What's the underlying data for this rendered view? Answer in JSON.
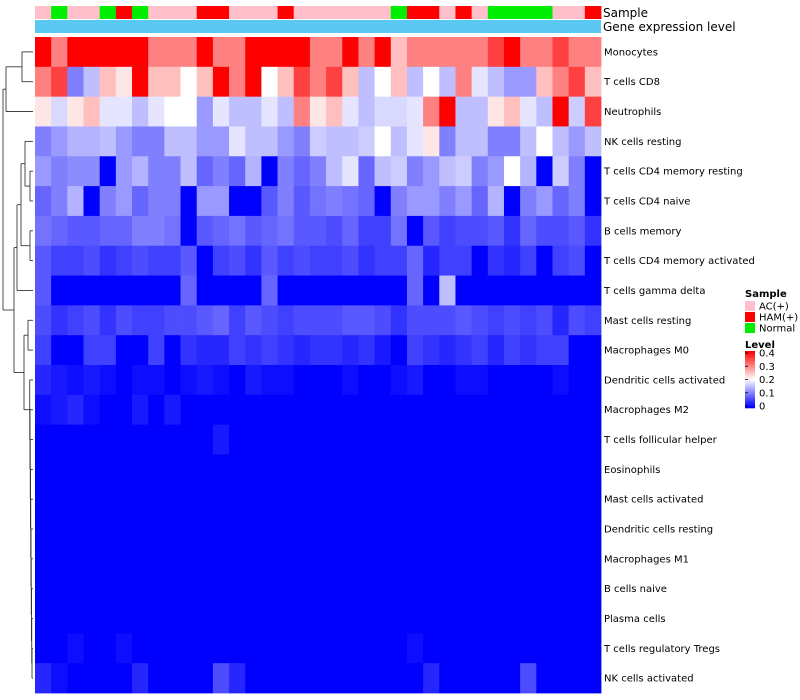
{
  "chart_data": {
    "type": "heatmap",
    "title": "",
    "xlabel": "",
    "ylabel": "",
    "annotation_rows": [
      "Sample",
      "Gene expression level"
    ],
    "rows": [
      "Monocytes",
      "T cells CD8",
      "Neutrophils",
      "NK cells resting",
      "T cells CD4 memory resting",
      "T cells CD4 naive",
      "B cells memory",
      "T cells CD4 memory activated",
      "T cells gamma delta",
      "Mast cells resting",
      "Macrophages M0",
      "Dendritic cells activated",
      "Macrophages M2",
      "T cells follicular helper",
      "Eosinophils",
      "Mast cells activated",
      "Dendritic cells resting",
      "Macrophages M1",
      "B cells naive",
      "Plasma cells",
      "T cells regulatory  Tregs",
      "NK cells activated"
    ],
    "samples": [
      "AC(+)",
      "Normal",
      "AC(+)",
      "AC(+)",
      "Normal",
      "HAM(+)",
      "Normal",
      "AC(+)",
      "AC(+)",
      "AC(+)",
      "HAM(+)",
      "HAM(+)",
      "AC(+)",
      "AC(+)",
      "AC(+)",
      "HAM(+)",
      "AC(+)",
      "AC(+)",
      "AC(+)",
      "AC(+)",
      "AC(+)",
      "AC(+)",
      "Normal",
      "HAM(+)",
      "HAM(+)",
      "AC(+)",
      "HAM(+)",
      "AC(+)",
      "Normal",
      "Normal",
      "Normal",
      "Normal",
      "AC(+)",
      "AC(+)",
      "HAM(+)"
    ],
    "values": [
      [
        0.4,
        0.3,
        0.4,
        0.4,
        0.4,
        0.4,
        0.4,
        0.3,
        0.3,
        0.3,
        0.4,
        0.3,
        0.3,
        0.4,
        0.4,
        0.4,
        0.4,
        0.3,
        0.3,
        0.4,
        0.3,
        0.4,
        0.25,
        0.3,
        0.3,
        0.3,
        0.3,
        0.3,
        0.35,
        0.4,
        0.3,
        0.3,
        0.35,
        0.3,
        0.3
      ],
      [
        0.3,
        0.35,
        0.1,
        0.15,
        0.25,
        0.22,
        0.4,
        0.25,
        0.25,
        0.2,
        0.25,
        0.4,
        0.3,
        0.4,
        0.2,
        0.25,
        0.35,
        0.3,
        0.35,
        0.25,
        0.15,
        0.2,
        0.25,
        0.15,
        0.2,
        0.15,
        0.3,
        0.18,
        0.15,
        0.12,
        0.12,
        0.25,
        0.3,
        0.35,
        0.25
      ],
      [
        0.22,
        0.17,
        0.22,
        0.25,
        0.18,
        0.18,
        0.15,
        0.18,
        0.2,
        0.2,
        0.12,
        0.18,
        0.15,
        0.15,
        0.18,
        0.15,
        0.3,
        0.22,
        0.25,
        0.18,
        0.15,
        0.17,
        0.17,
        0.18,
        0.3,
        0.4,
        0.15,
        0.15,
        0.22,
        0.25,
        0.18,
        0.15,
        0.4,
        0.16,
        0.35
      ],
      [
        0.1,
        0.12,
        0.14,
        0.14,
        0.15,
        0.12,
        0.1,
        0.1,
        0.15,
        0.15,
        0.12,
        0.12,
        0.18,
        0.15,
        0.15,
        0.12,
        0.1,
        0.16,
        0.15,
        0.15,
        0.16,
        0.2,
        0.15,
        0.18,
        0.22,
        0.1,
        0.15,
        0.15,
        0.1,
        0.1,
        0.15,
        0.2,
        0.15,
        0.12,
        0.15
      ],
      [
        0.12,
        0.1,
        0.11,
        0.11,
        0.0,
        0.12,
        0.14,
        0.1,
        0.1,
        0.15,
        0.08,
        0.1,
        0.08,
        0.14,
        0.0,
        0.1,
        0.08,
        0.1,
        0.15,
        0.18,
        0.08,
        0.15,
        0.16,
        0.1,
        0.12,
        0.15,
        0.16,
        0.1,
        0.12,
        0.2,
        0.14,
        0.0,
        0.16,
        0.1,
        0.0
      ],
      [
        0.08,
        0.1,
        0.14,
        0.0,
        0.1,
        0.12,
        0.08,
        0.1,
        0.1,
        0.0,
        0.12,
        0.12,
        0.0,
        0.0,
        0.07,
        0.1,
        0.07,
        0.09,
        0.1,
        0.09,
        0.08,
        0.0,
        0.1,
        0.12,
        0.12,
        0.1,
        0.12,
        0.08,
        0.14,
        0.0,
        0.1,
        0.12,
        0.08,
        0.1,
        0.0
      ],
      [
        0.09,
        0.08,
        0.07,
        0.07,
        0.08,
        0.08,
        0.1,
        0.1,
        0.09,
        0.0,
        0.07,
        0.08,
        0.09,
        0.07,
        0.08,
        0.09,
        0.07,
        0.07,
        0.06,
        0.08,
        0.05,
        0.05,
        0.09,
        0.0,
        0.07,
        0.05,
        0.06,
        0.06,
        0.07,
        0.04,
        0.08,
        0.06,
        0.06,
        0.07,
        0.04
      ],
      [
        0.07,
        0.05,
        0.05,
        0.06,
        0.04,
        0.05,
        0.06,
        0.05,
        0.05,
        0.07,
        0.0,
        0.05,
        0.06,
        0.04,
        0.07,
        0.05,
        0.06,
        0.05,
        0.05,
        0.06,
        0.04,
        0.05,
        0.05,
        0.08,
        0.03,
        0.05,
        0.05,
        0.0,
        0.04,
        0.03,
        0.05,
        0.0,
        0.05,
        0.06,
        0.0
      ],
      [
        0.07,
        0.0,
        0.0,
        0.0,
        0.0,
        0.0,
        0.0,
        0.0,
        0.0,
        0.08,
        0.0,
        0.0,
        0.0,
        0.0,
        0.08,
        0.0,
        0.0,
        0.0,
        0.0,
        0.0,
        0.0,
        0.0,
        0.0,
        0.08,
        0.0,
        0.15,
        0.0,
        0.0,
        0.0,
        0.0,
        0.0,
        0.0,
        0.0,
        0.0,
        0.0
      ],
      [
        0.06,
        0.04,
        0.05,
        0.06,
        0.04,
        0.06,
        0.05,
        0.05,
        0.06,
        0.06,
        0.07,
        0.08,
        0.05,
        0.07,
        0.06,
        0.05,
        0.06,
        0.06,
        0.06,
        0.07,
        0.07,
        0.06,
        0.04,
        0.06,
        0.06,
        0.06,
        0.07,
        0.06,
        0.05,
        0.06,
        0.05,
        0.06,
        0.03,
        0.06,
        0.05
      ],
      [
        0.05,
        0.0,
        0.0,
        0.05,
        0.05,
        0.0,
        0.0,
        0.05,
        0.0,
        0.04,
        0.03,
        0.03,
        0.05,
        0.04,
        0.05,
        0.04,
        0.03,
        0.04,
        0.04,
        0.03,
        0.04,
        0.02,
        0.0,
        0.05,
        0.04,
        0.03,
        0.04,
        0.05,
        0.03,
        0.05,
        0.04,
        0.05,
        0.05,
        0.0,
        0.0
      ],
      [
        0.03,
        0.02,
        0.01,
        0.02,
        0.01,
        0.0,
        0.01,
        0.01,
        0.0,
        0.01,
        0.02,
        0.01,
        0.0,
        0.02,
        0.01,
        0.01,
        0.0,
        0.0,
        0.0,
        0.01,
        0.0,
        0.0,
        0.01,
        0.02,
        0.0,
        0.0,
        0.01,
        0.01,
        0.0,
        0.0,
        0.0,
        0.0,
        0.01,
        0.0,
        0.0
      ],
      [
        0.01,
        0.02,
        0.03,
        0.01,
        0.0,
        0.0,
        0.02,
        0.0,
        0.02,
        0.0,
        0.0,
        0.0,
        0.0,
        0.0,
        0.0,
        0.0,
        0.0,
        0.0,
        0.0,
        0.0,
        0.0,
        0.0,
        0.0,
        0.0,
        0.0,
        0.0,
        0.0,
        0.0,
        0.0,
        0.0,
        0.0,
        0.0,
        0.0,
        0.0,
        0.0
      ],
      [
        0.0,
        0.0,
        0.0,
        0.0,
        0.0,
        0.0,
        0.0,
        0.0,
        0.0,
        0.0,
        0.0,
        0.02,
        0.0,
        0.0,
        0.0,
        0.0,
        0.0,
        0.0,
        0.0,
        0.0,
        0.0,
        0.0,
        0.0,
        0.0,
        0.0,
        0.0,
        0.0,
        0.0,
        0.0,
        0.0,
        0.0,
        0.0,
        0.0,
        0.0,
        0.0
      ],
      [
        0.0,
        0.0,
        0.0,
        0.0,
        0.0,
        0.0,
        0.0,
        0.0,
        0.0,
        0.0,
        0.0,
        0.0,
        0.0,
        0.0,
        0.0,
        0.0,
        0.0,
        0.0,
        0.0,
        0.0,
        0.0,
        0.0,
        0.0,
        0.0,
        0.0,
        0.0,
        0.0,
        0.0,
        0.0,
        0.0,
        0.0,
        0.0,
        0.0,
        0.0,
        0.0
      ],
      [
        0.0,
        0.0,
        0.0,
        0.0,
        0.0,
        0.0,
        0.0,
        0.0,
        0.0,
        0.0,
        0.0,
        0.0,
        0.0,
        0.0,
        0.0,
        0.0,
        0.0,
        0.0,
        0.0,
        0.0,
        0.0,
        0.0,
        0.0,
        0.0,
        0.0,
        0.0,
        0.0,
        0.0,
        0.0,
        0.0,
        0.0,
        0.0,
        0.0,
        0.0,
        0.0
      ],
      [
        0.0,
        0.0,
        0.0,
        0.0,
        0.0,
        0.0,
        0.0,
        0.0,
        0.0,
        0.0,
        0.0,
        0.0,
        0.0,
        0.0,
        0.0,
        0.0,
        0.0,
        0.0,
        0.0,
        0.0,
        0.0,
        0.0,
        0.0,
        0.0,
        0.0,
        0.0,
        0.0,
        0.0,
        0.0,
        0.0,
        0.0,
        0.0,
        0.0,
        0.0,
        0.0
      ],
      [
        0.0,
        0.0,
        0.0,
        0.0,
        0.0,
        0.0,
        0.0,
        0.0,
        0.0,
        0.0,
        0.0,
        0.0,
        0.0,
        0.0,
        0.0,
        0.0,
        0.0,
        0.0,
        0.0,
        0.0,
        0.0,
        0.0,
        0.0,
        0.0,
        0.0,
        0.0,
        0.0,
        0.0,
        0.0,
        0.0,
        0.0,
        0.0,
        0.0,
        0.0,
        0.0
      ],
      [
        0.0,
        0.0,
        0.0,
        0.0,
        0.0,
        0.0,
        0.0,
        0.0,
        0.0,
        0.0,
        0.0,
        0.0,
        0.0,
        0.0,
        0.0,
        0.0,
        0.0,
        0.0,
        0.0,
        0.0,
        0.0,
        0.0,
        0.0,
        0.0,
        0.0,
        0.0,
        0.0,
        0.0,
        0.0,
        0.0,
        0.0,
        0.0,
        0.0,
        0.0,
        0.0
      ],
      [
        0.0,
        0.0,
        0.0,
        0.0,
        0.0,
        0.0,
        0.0,
        0.0,
        0.0,
        0.0,
        0.0,
        0.0,
        0.0,
        0.0,
        0.0,
        0.0,
        0.0,
        0.0,
        0.0,
        0.0,
        0.0,
        0.0,
        0.0,
        0.0,
        0.0,
        0.0,
        0.0,
        0.0,
        0.0,
        0.0,
        0.0,
        0.0,
        0.0,
        0.0,
        0.0
      ],
      [
        0.0,
        0.0,
        0.01,
        0.0,
        0.0,
        0.01,
        0.0,
        0.0,
        0.0,
        0.0,
        0.0,
        0.0,
        0.0,
        0.0,
        0.0,
        0.0,
        0.0,
        0.0,
        0.0,
        0.0,
        0.0,
        0.0,
        0.0,
        0.01,
        0.0,
        0.0,
        0.0,
        0.0,
        0.0,
        0.0,
        0.0,
        0.0,
        0.0,
        0.0,
        0.0
      ],
      [
        0.03,
        0.01,
        0.0,
        0.0,
        0.0,
        0.0,
        0.03,
        0.0,
        0.0,
        0.0,
        0.0,
        0.06,
        0.03,
        0.0,
        0.0,
        0.0,
        0.0,
        0.0,
        0.0,
        0.0,
        0.0,
        0.0,
        0.0,
        0.0,
        0.03,
        0.0,
        0.0,
        0.0,
        0.0,
        0.0,
        0.06,
        0.0,
        0.0,
        0.0,
        0.0
      ]
    ],
    "legend": {
      "sample_title": "Sample",
      "sample_categories": [
        {
          "label": "AC(+)",
          "color": "#ffc0cb"
        },
        {
          "label": "HAM(+)",
          "color": "#ff0000"
        },
        {
          "label": "Normal",
          "color": "#00ee00"
        }
      ],
      "level_title": "Level",
      "level_range": [
        0,
        0.4
      ],
      "level_ticks": [
        "0.4",
        "0.3",
        "0.2",
        "0.1",
        "0"
      ]
    },
    "colors": {
      "low": "#0000ff",
      "mid": "#ffffff",
      "high": "#ff0000",
      "expression_bar": "#5ac8f0"
    }
  }
}
